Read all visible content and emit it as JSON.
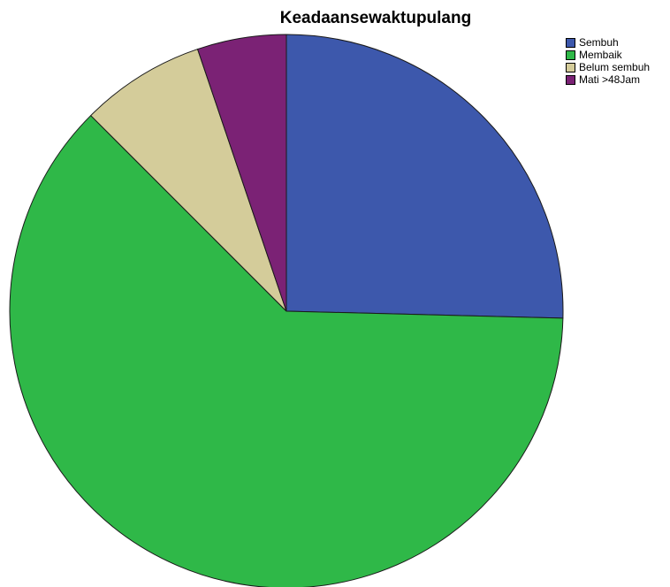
{
  "chart_data": {
    "type": "pie",
    "title": "Keadaansewaktupulang",
    "categories": [
      "Sembuh",
      "Membaik",
      "Belum sembuh",
      "Mati >48Jam"
    ],
    "values": [
      25.4,
      62.1,
      7.3,
      5.2
    ],
    "colors": [
      "#3d58ac",
      "#2fb848",
      "#d4cc9a",
      "#7b2275"
    ],
    "start_angle_deg": 0,
    "direction": "clockwise",
    "legend": "top-right"
  }
}
